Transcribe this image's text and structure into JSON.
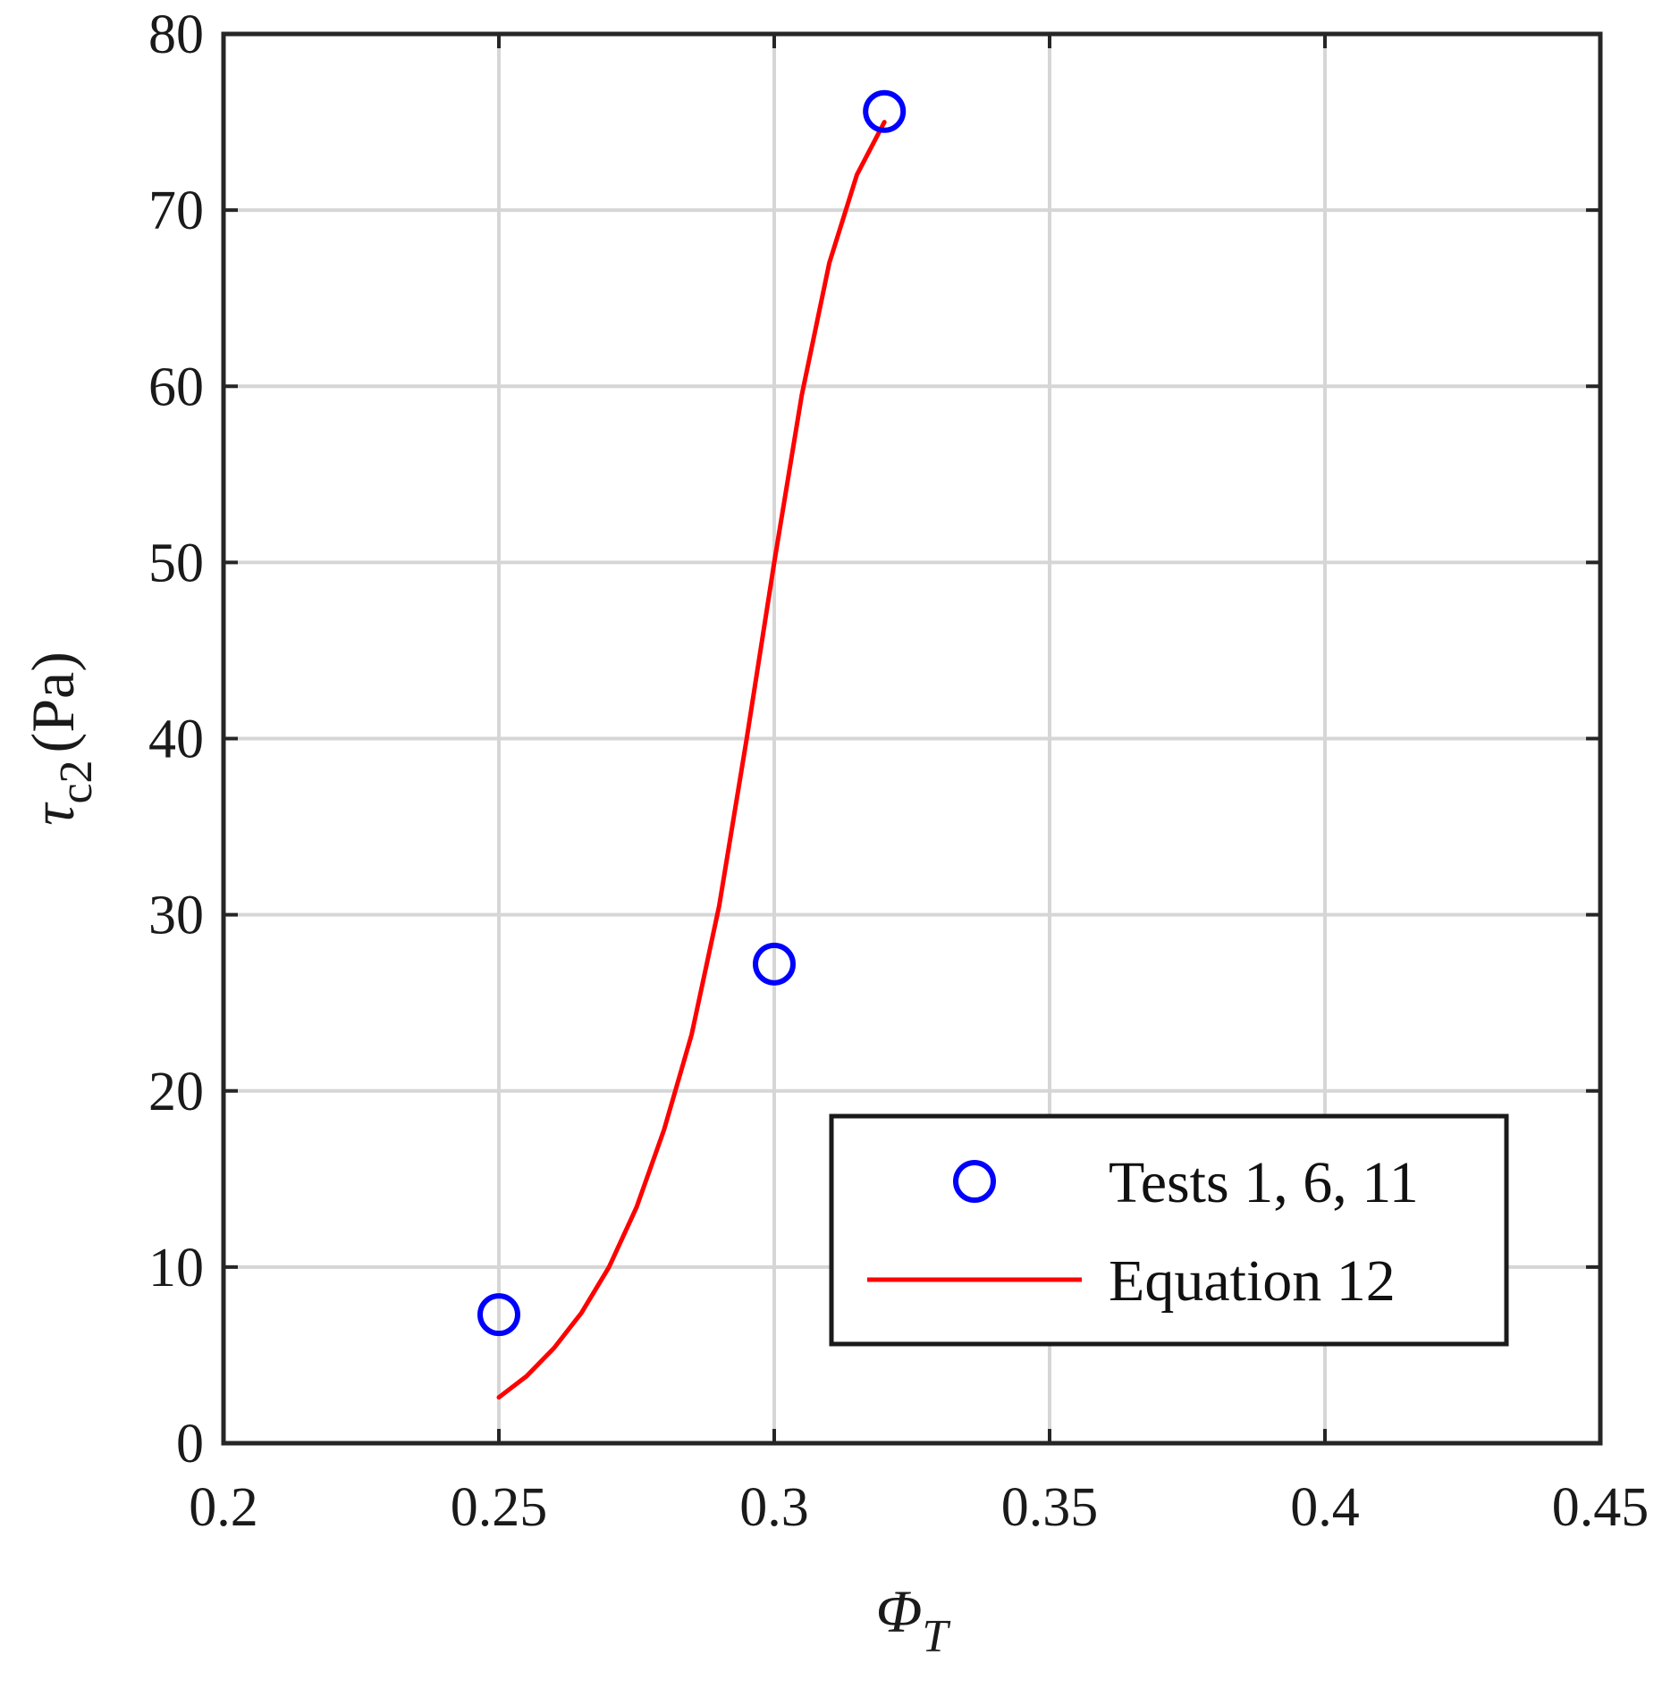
{
  "chart_data": {
    "type": "scatter",
    "xlabel": {
      "main": "Φ",
      "sub": "T"
    },
    "ylabel": {
      "main": "τ",
      "sub": "c2",
      "unit": "(Pa)"
    },
    "xlim": [
      0.2,
      0.45
    ],
    "ylim": [
      0,
      80
    ],
    "xticks": [
      "0.2",
      "0.25",
      "0.3",
      "0.35",
      "0.4",
      "0.45"
    ],
    "yticks": [
      "0",
      "10",
      "20",
      "30",
      "40",
      "50",
      "60",
      "70",
      "80"
    ],
    "grid": true,
    "legend_position": "bottom-right",
    "series": [
      {
        "name": "Tests 1, 6, 11",
        "kind": "markers",
        "marker": "circle",
        "color": "#0000ff",
        "x": [
          0.25,
          0.3,
          0.32
        ],
        "y": [
          7.3,
          27.2,
          75.6
        ]
      },
      {
        "name": "Equation 12",
        "kind": "line",
        "color": "#ff0000",
        "x": [
          0.25,
          0.255,
          0.26,
          0.265,
          0.27,
          0.275,
          0.28,
          0.285,
          0.29,
          0.295,
          0.3,
          0.305,
          0.31,
          0.315,
          0.32
        ],
        "y": [
          2.6,
          3.8,
          5.4,
          7.4,
          10.0,
          13.4,
          17.8,
          23.2,
          30.5,
          40.0,
          50.0,
          59.5,
          67.0,
          72.0,
          75.0
        ]
      }
    ]
  }
}
